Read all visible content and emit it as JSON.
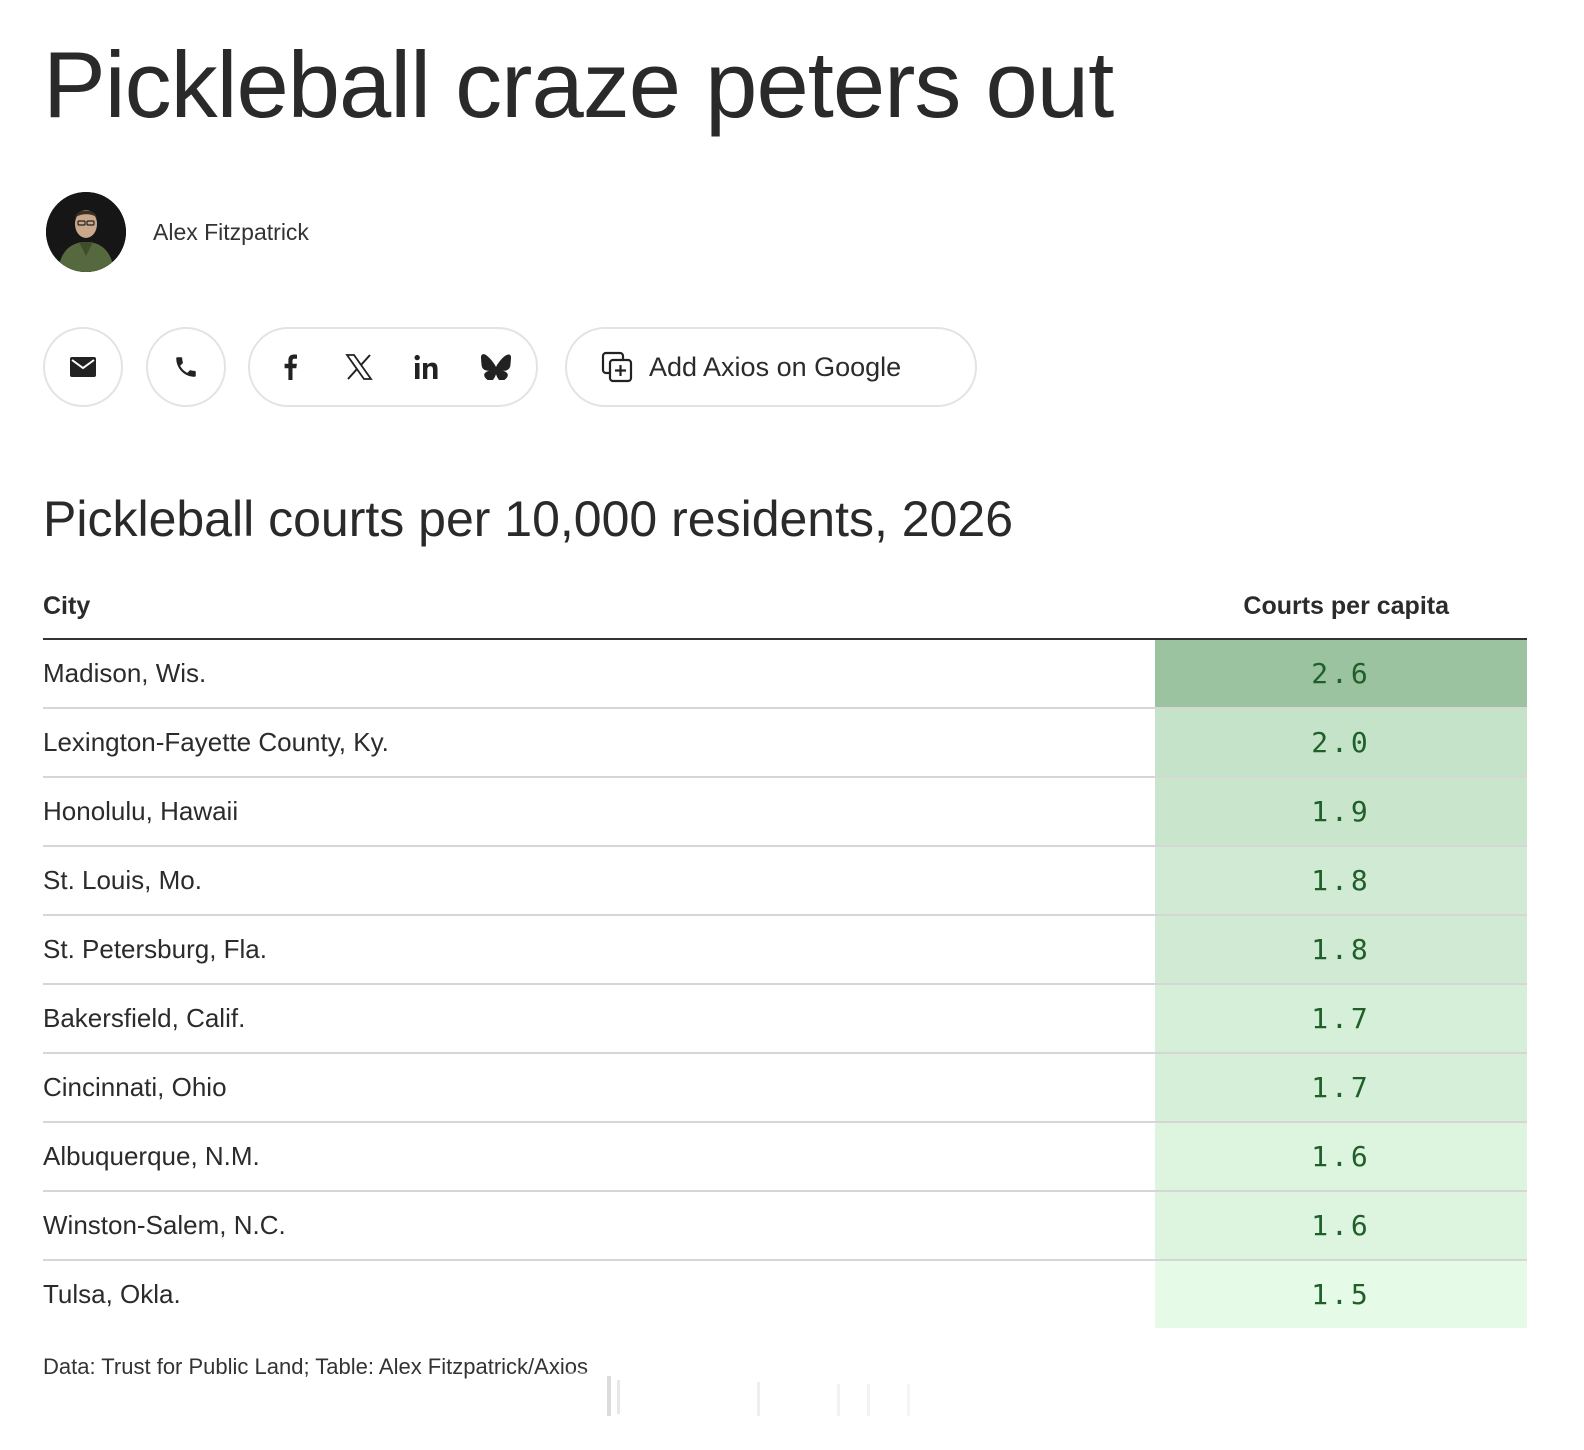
{
  "article": {
    "headline": "Pickleball craze peters out",
    "author": "Alex Fitzpatrick"
  },
  "share": {
    "icons": [
      "email-icon",
      "phone-icon",
      "facebook-icon",
      "x-icon",
      "linkedin-icon",
      "bluesky-icon",
      "add-to-google-icon"
    ],
    "google_label": "Add Axios on Google"
  },
  "table": {
    "title": "Pickleball courts per 10,000 residents, 2026",
    "headers": {
      "city": "City",
      "value": "Courts per capita"
    },
    "rows": [
      {
        "city": "Madison, Wis.",
        "value": "2.6",
        "shade": "#9cc39f"
      },
      {
        "city": "Lexington-Fayette County, Ky.",
        "value": "2.0",
        "shade": "#c4e3c9"
      },
      {
        "city": "Honolulu, Hawaii",
        "value": "1.9",
        "shade": "#c9e6cd"
      },
      {
        "city": "St. Louis, Mo.",
        "value": "1.8",
        "shade": "#d0ead3"
      },
      {
        "city": "St. Petersburg, Fla.",
        "value": "1.8",
        "shade": "#d0ead3"
      },
      {
        "city": "Bakersfield, Calif.",
        "value": "1.7",
        "shade": "#d6efd8"
      },
      {
        "city": "Cincinnati, Ohio",
        "value": "1.7",
        "shade": "#d6efd8"
      },
      {
        "city": "Albuquerque, N.M.",
        "value": "1.6",
        "shade": "#ddf4df"
      },
      {
        "city": "Winston-Salem, N.C.",
        "value": "1.6",
        "shade": "#ddf4df"
      },
      {
        "city": "Tulsa, Okla.",
        "value": "1.5",
        "shade": "#e6fae8"
      }
    ],
    "source": "Data: Trust for Public Land; Table: Alex Fitzpatrick/Axios"
  }
}
